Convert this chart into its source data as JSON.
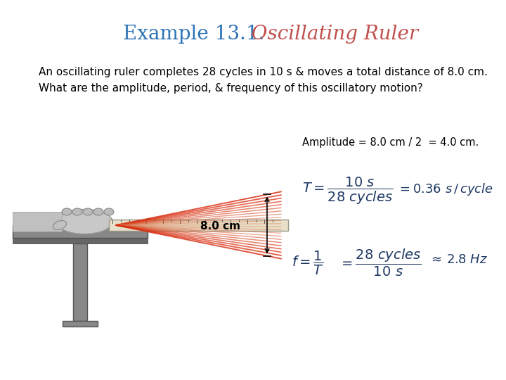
{
  "title_example": "Example 13.1.",
  "title_main": "  Oscillating Ruler",
  "title_example_color": "#2E74B5",
  "title_main_color": "#C0504D",
  "title_fontsize": 20,
  "body_text1": "An oscillating ruler completes 28 cycles in 10 s & moves a total distance of 8.0 cm.",
  "body_text2": "What are the amplitude, period, & frequency of this oscillatory motion?",
  "body_color": "#000000",
  "body_fontsize": 11,
  "amplitude_text": "Amplitude = 8.0 cm / 2  = 4.0 cm.",
  "amplitude_color": "#000000",
  "formula_color": "#1F3864",
  "bg_color": "#FFFFFF",
  "tilde_color": "#1F3864"
}
